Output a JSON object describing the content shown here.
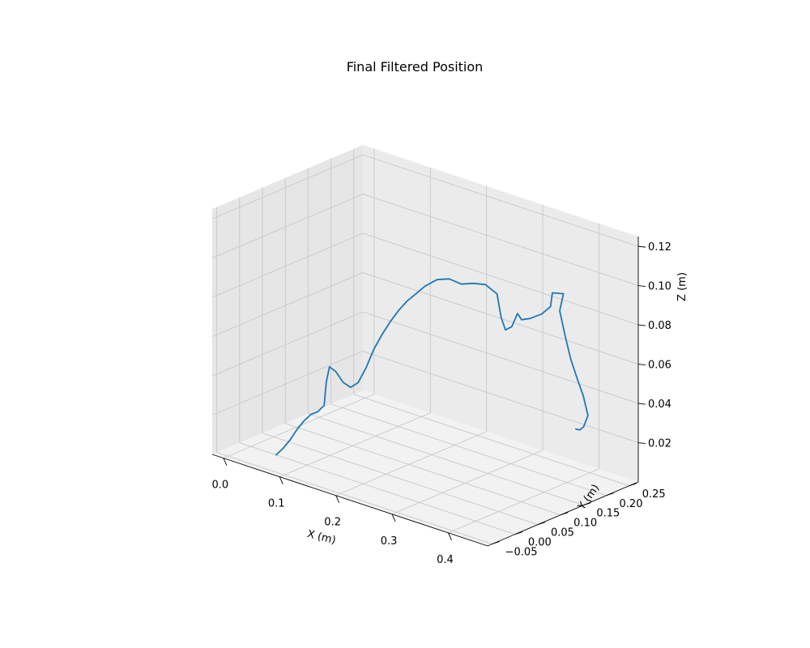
{
  "chart_data": {
    "type": "line",
    "projection": "3d",
    "title": "Final Filtered Position",
    "xlabel": "X (m)",
    "ylabel": "Y (m)",
    "zlabel": "Z (m)",
    "xlim": [
      -0.02,
      0.47
    ],
    "ylim": [
      -0.06,
      0.27
    ],
    "zlim": [
      0.0,
      0.125
    ],
    "x_ticks": [
      "0.0",
      "0.1",
      "0.2",
      "0.3",
      "0.4"
    ],
    "y_ticks": [
      "−0.05",
      "0.00",
      "0.05",
      "0.10",
      "0.15",
      "0.20",
      "0.25"
    ],
    "z_ticks": [
      "0.02",
      "0.04",
      "0.06",
      "0.08",
      "0.10",
      "0.12"
    ],
    "grid": true,
    "series": [
      {
        "color": "#1f77b4",
        "points": [
          [
            0.045,
            0.0,
            0.0
          ],
          [
            0.055,
            0.003,
            0.004
          ],
          [
            0.065,
            0.006,
            0.009
          ],
          [
            0.075,
            0.009,
            0.015
          ],
          [
            0.085,
            0.012,
            0.02
          ],
          [
            0.095,
            0.015,
            0.024
          ],
          [
            0.105,
            0.017,
            0.026
          ],
          [
            0.115,
            0.019,
            0.03
          ],
          [
            0.118,
            0.02,
            0.042
          ],
          [
            0.122,
            0.022,
            0.05
          ],
          [
            0.13,
            0.026,
            0.048
          ],
          [
            0.14,
            0.03,
            0.043
          ],
          [
            0.15,
            0.034,
            0.041
          ],
          [
            0.16,
            0.038,
            0.044
          ],
          [
            0.17,
            0.043,
            0.052
          ],
          [
            0.18,
            0.048,
            0.062
          ],
          [
            0.19,
            0.054,
            0.07
          ],
          [
            0.2,
            0.06,
            0.077
          ],
          [
            0.21,
            0.066,
            0.083
          ],
          [
            0.22,
            0.072,
            0.088
          ],
          [
            0.23,
            0.079,
            0.092
          ],
          [
            0.24,
            0.086,
            0.096
          ],
          [
            0.255,
            0.094,
            0.1
          ],
          [
            0.27,
            0.102,
            0.101
          ],
          [
            0.285,
            0.11,
            0.099
          ],
          [
            0.3,
            0.118,
            0.1
          ],
          [
            0.315,
            0.126,
            0.1
          ],
          [
            0.33,
            0.133,
            0.096
          ],
          [
            0.335,
            0.136,
            0.084
          ],
          [
            0.34,
            0.139,
            0.078
          ],
          [
            0.348,
            0.143,
            0.08
          ],
          [
            0.355,
            0.147,
            0.087
          ],
          [
            0.36,
            0.15,
            0.084
          ],
          [
            0.37,
            0.156,
            0.085
          ],
          [
            0.385,
            0.163,
            0.088
          ],
          [
            0.395,
            0.17,
            0.092
          ],
          [
            0.392,
            0.178,
            0.098
          ],
          [
            0.405,
            0.186,
            0.098
          ],
          [
            0.4,
            0.184,
            0.089
          ],
          [
            0.405,
            0.19,
            0.076
          ],
          [
            0.41,
            0.196,
            0.064
          ],
          [
            0.418,
            0.201,
            0.054
          ],
          [
            0.425,
            0.205,
            0.046
          ],
          [
            0.43,
            0.209,
            0.036
          ],
          [
            0.415,
            0.218,
            0.028
          ],
          [
            0.4,
            0.228,
            0.024
          ],
          [
            0.385,
            0.238,
            0.022
          ]
        ]
      }
    ]
  }
}
